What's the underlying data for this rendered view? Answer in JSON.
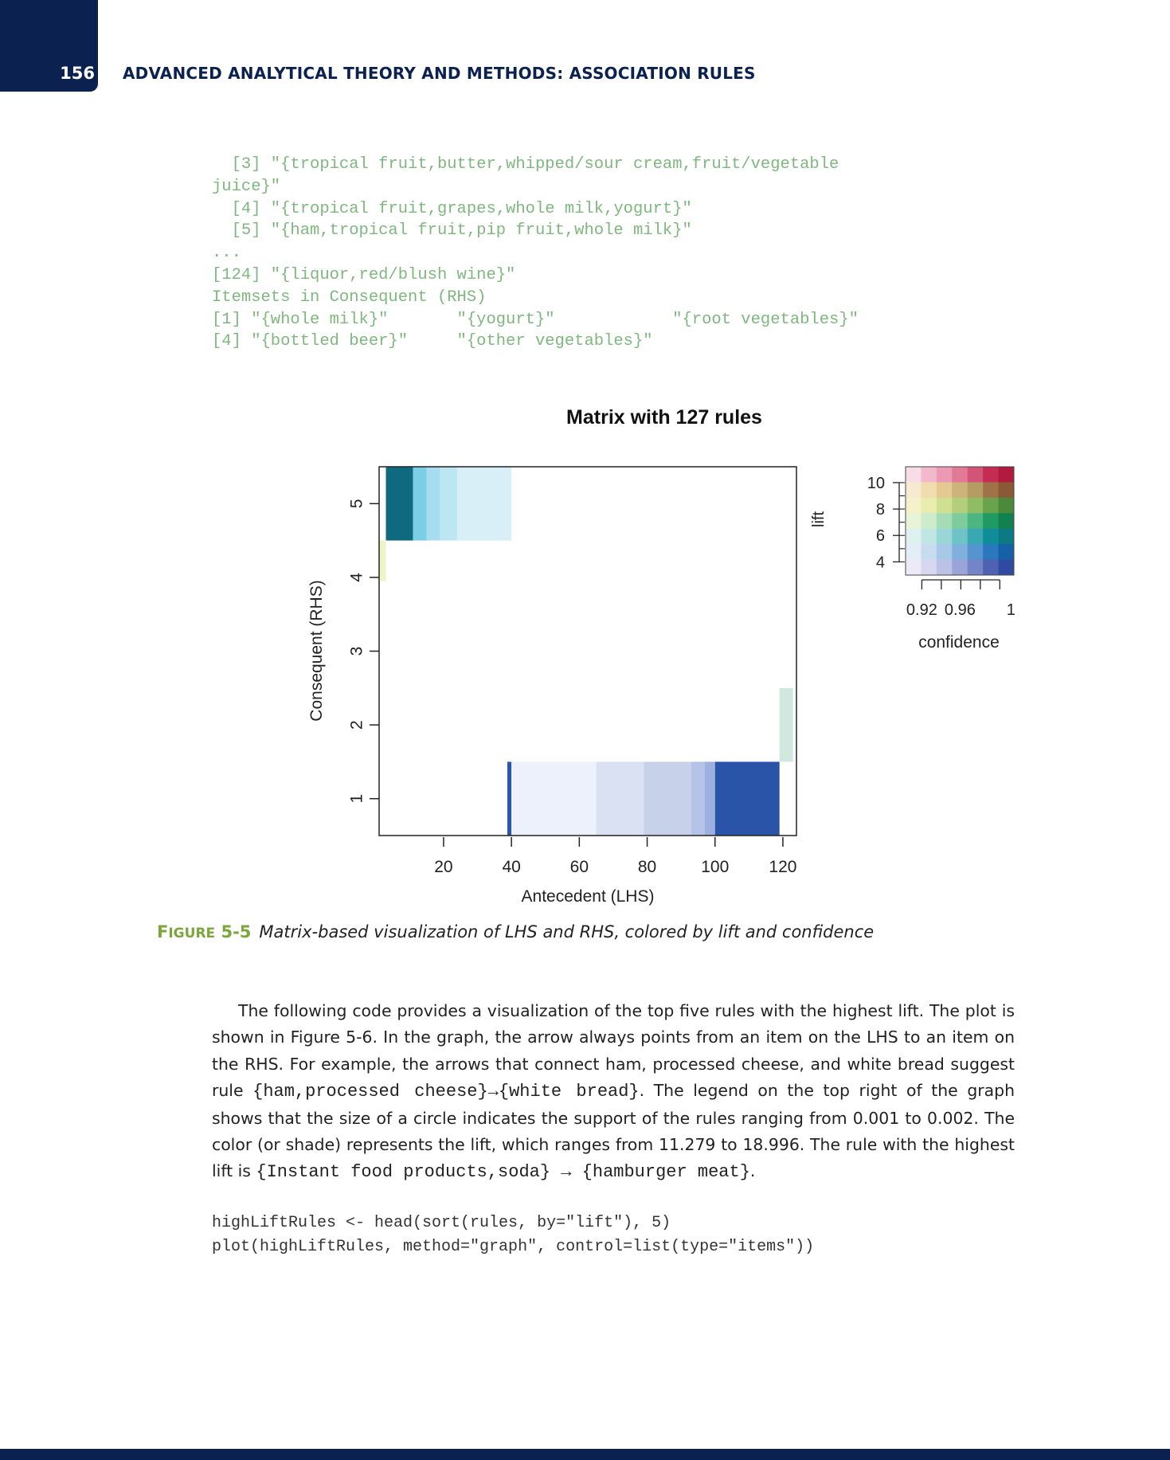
{
  "header": {
    "page_number": "156",
    "running_head": "ADVANCED ANALYTICAL THEORY AND METHODS: ASSOCIATION RULES"
  },
  "code_output": "  [3] \"{tropical fruit,butter,whipped/sour cream,fruit/vegetable\njuice}\"\n  [4] \"{tropical fruit,grapes,whole milk,yogurt}\"\n  [5] \"{ham,tropical fruit,pip fruit,whole milk}\"\n...\n[124] \"{liquor,red/blush wine}\"\nItemsets in Consequent (RHS)\n[1] \"{whole milk}\"       \"{yogurt}\"            \"{root vegetables}\"\n[4] \"{bottled beer}\"     \"{other vegetables}\"",
  "chart_data": {
    "type": "heatmap",
    "title": "Matrix with 127 rules",
    "xlabel": "Antecedent (LHS)",
    "ylabel": "Consequent (RHS)",
    "xlim": [
      1,
      124
    ],
    "ylim": [
      0.5,
      5.5
    ],
    "x_ticks": [
      20,
      40,
      60,
      80,
      100,
      120
    ],
    "y_ticks": [
      1,
      2,
      3,
      4,
      5
    ],
    "grid": false,
    "cells": [
      {
        "rhs": 5,
        "lhs_from": 3,
        "lhs_to": 11,
        "color": "#0f6a80"
      },
      {
        "rhs": 5,
        "lhs_from": 11,
        "lhs_to": 15,
        "color": "#7ccde6"
      },
      {
        "rhs": 5,
        "lhs_from": 15,
        "lhs_to": 19,
        "color": "#a6dcee"
      },
      {
        "rhs": 5,
        "lhs_from": 19,
        "lhs_to": 24,
        "color": "#bde6f3"
      },
      {
        "rhs": 5,
        "lhs_from": 24,
        "lhs_to": 40,
        "color": "#d8eff8"
      },
      {
        "rhs": 4,
        "lhs_from": 1,
        "lhs_to": 3,
        "color": "#eef3c8",
        "height": 0.55
      },
      {
        "rhs": 1,
        "lhs_from": 38.8,
        "lhs_to": 40,
        "color": "#2a56b0"
      },
      {
        "rhs": 1,
        "lhs_from": 40,
        "lhs_to": 65,
        "color": "#edf1fb"
      },
      {
        "rhs": 1,
        "lhs_from": 65,
        "lhs_to": 79,
        "color": "#d9e1f3"
      },
      {
        "rhs": 1,
        "lhs_from": 79,
        "lhs_to": 93,
        "color": "#c8d1ea"
      },
      {
        "rhs": 1,
        "lhs_from": 93,
        "lhs_to": 97,
        "color": "#b4c3e6"
      },
      {
        "rhs": 1,
        "lhs_from": 97,
        "lhs_to": 100,
        "color": "#9db0df"
      },
      {
        "rhs": 1,
        "lhs_from": 100,
        "lhs_to": 119,
        "color": "#2954a8"
      },
      {
        "rhs": 2,
        "lhs_from": 119,
        "lhs_to": 123,
        "color": "#cfe9df",
        "height": 1.0,
        "center": 2.0
      }
    ],
    "legend": {
      "lift_label": "lift",
      "lift_ticks": [
        4,
        6,
        8,
        10
      ],
      "confidence_label": "confidence",
      "confidence_tick_labels": [
        "0.92",
        "0.96",
        "1"
      ],
      "color_grid": [
        [
          "#f7dde5",
          "#f2b8cc",
          "#ec9ab3",
          "#e27a97",
          "#d25478",
          "#c42c52",
          "#b01a3c"
        ],
        [
          "#f6ead1",
          "#f1dcb0",
          "#e5c992",
          "#cdb27a",
          "#b49d62",
          "#a07247",
          "#8a5a36"
        ],
        [
          "#f5f1c9",
          "#e8ecac",
          "#cfe093",
          "#b3cf7d",
          "#8fbc64",
          "#6aa34d",
          "#4a8a3a"
        ],
        [
          "#e8f4d8",
          "#cdeccb",
          "#a6dcb5",
          "#7ccc9c",
          "#4cb683",
          "#1f9a63",
          "#118150"
        ],
        [
          "#ddf1ee",
          "#bfe6e3",
          "#9bd6d6",
          "#6fc2c5",
          "#3aa8b0",
          "#0f8e9a",
          "#0a7a84"
        ],
        [
          "#e3edf8",
          "#c8dcf0",
          "#a8c8e8",
          "#7fb0de",
          "#5594cf",
          "#2c78be",
          "#1660a8"
        ],
        [
          "#eceaf7",
          "#d7d8f0",
          "#bcc1e6",
          "#9aa4d8",
          "#7584c6",
          "#4f62b2",
          "#2f4aa0"
        ]
      ]
    }
  },
  "caption": {
    "label_first": "F",
    "label_rest": "IGURE",
    "label_number": "5-5",
    "text": "Matrix-based visualization of LHS and RHS, colored by lift and confidence"
  },
  "body": {
    "part1": "The following code provides a visualization of the top five rules with the highest lift. The plot is shown in Figure 5-6. In the graph, the arrow always points from an item on the LHS to an item on the RHS. For example, the arrows that connect ham, processed cheese, and white bread suggest rule ",
    "rule1": "{ham,processed cheese}→{white bread}",
    "part2": ". The legend on the top right of the graph shows that the size of a circle indicates the support of the rules ranging from 0.001 to 0.002. The color (or shade) represents the lift, which ranges from 11.279 to 18.996. The rule with the highest lift is ",
    "rule2": "{Instant food products,soda} → {hamburger meat}",
    "part3": "."
  },
  "code_block": "highLiftRules <- head(sort(rules, by=\"lift\"), 5)\nplot(highLiftRules, method=\"graph\", control=list(type=\"items\"))"
}
